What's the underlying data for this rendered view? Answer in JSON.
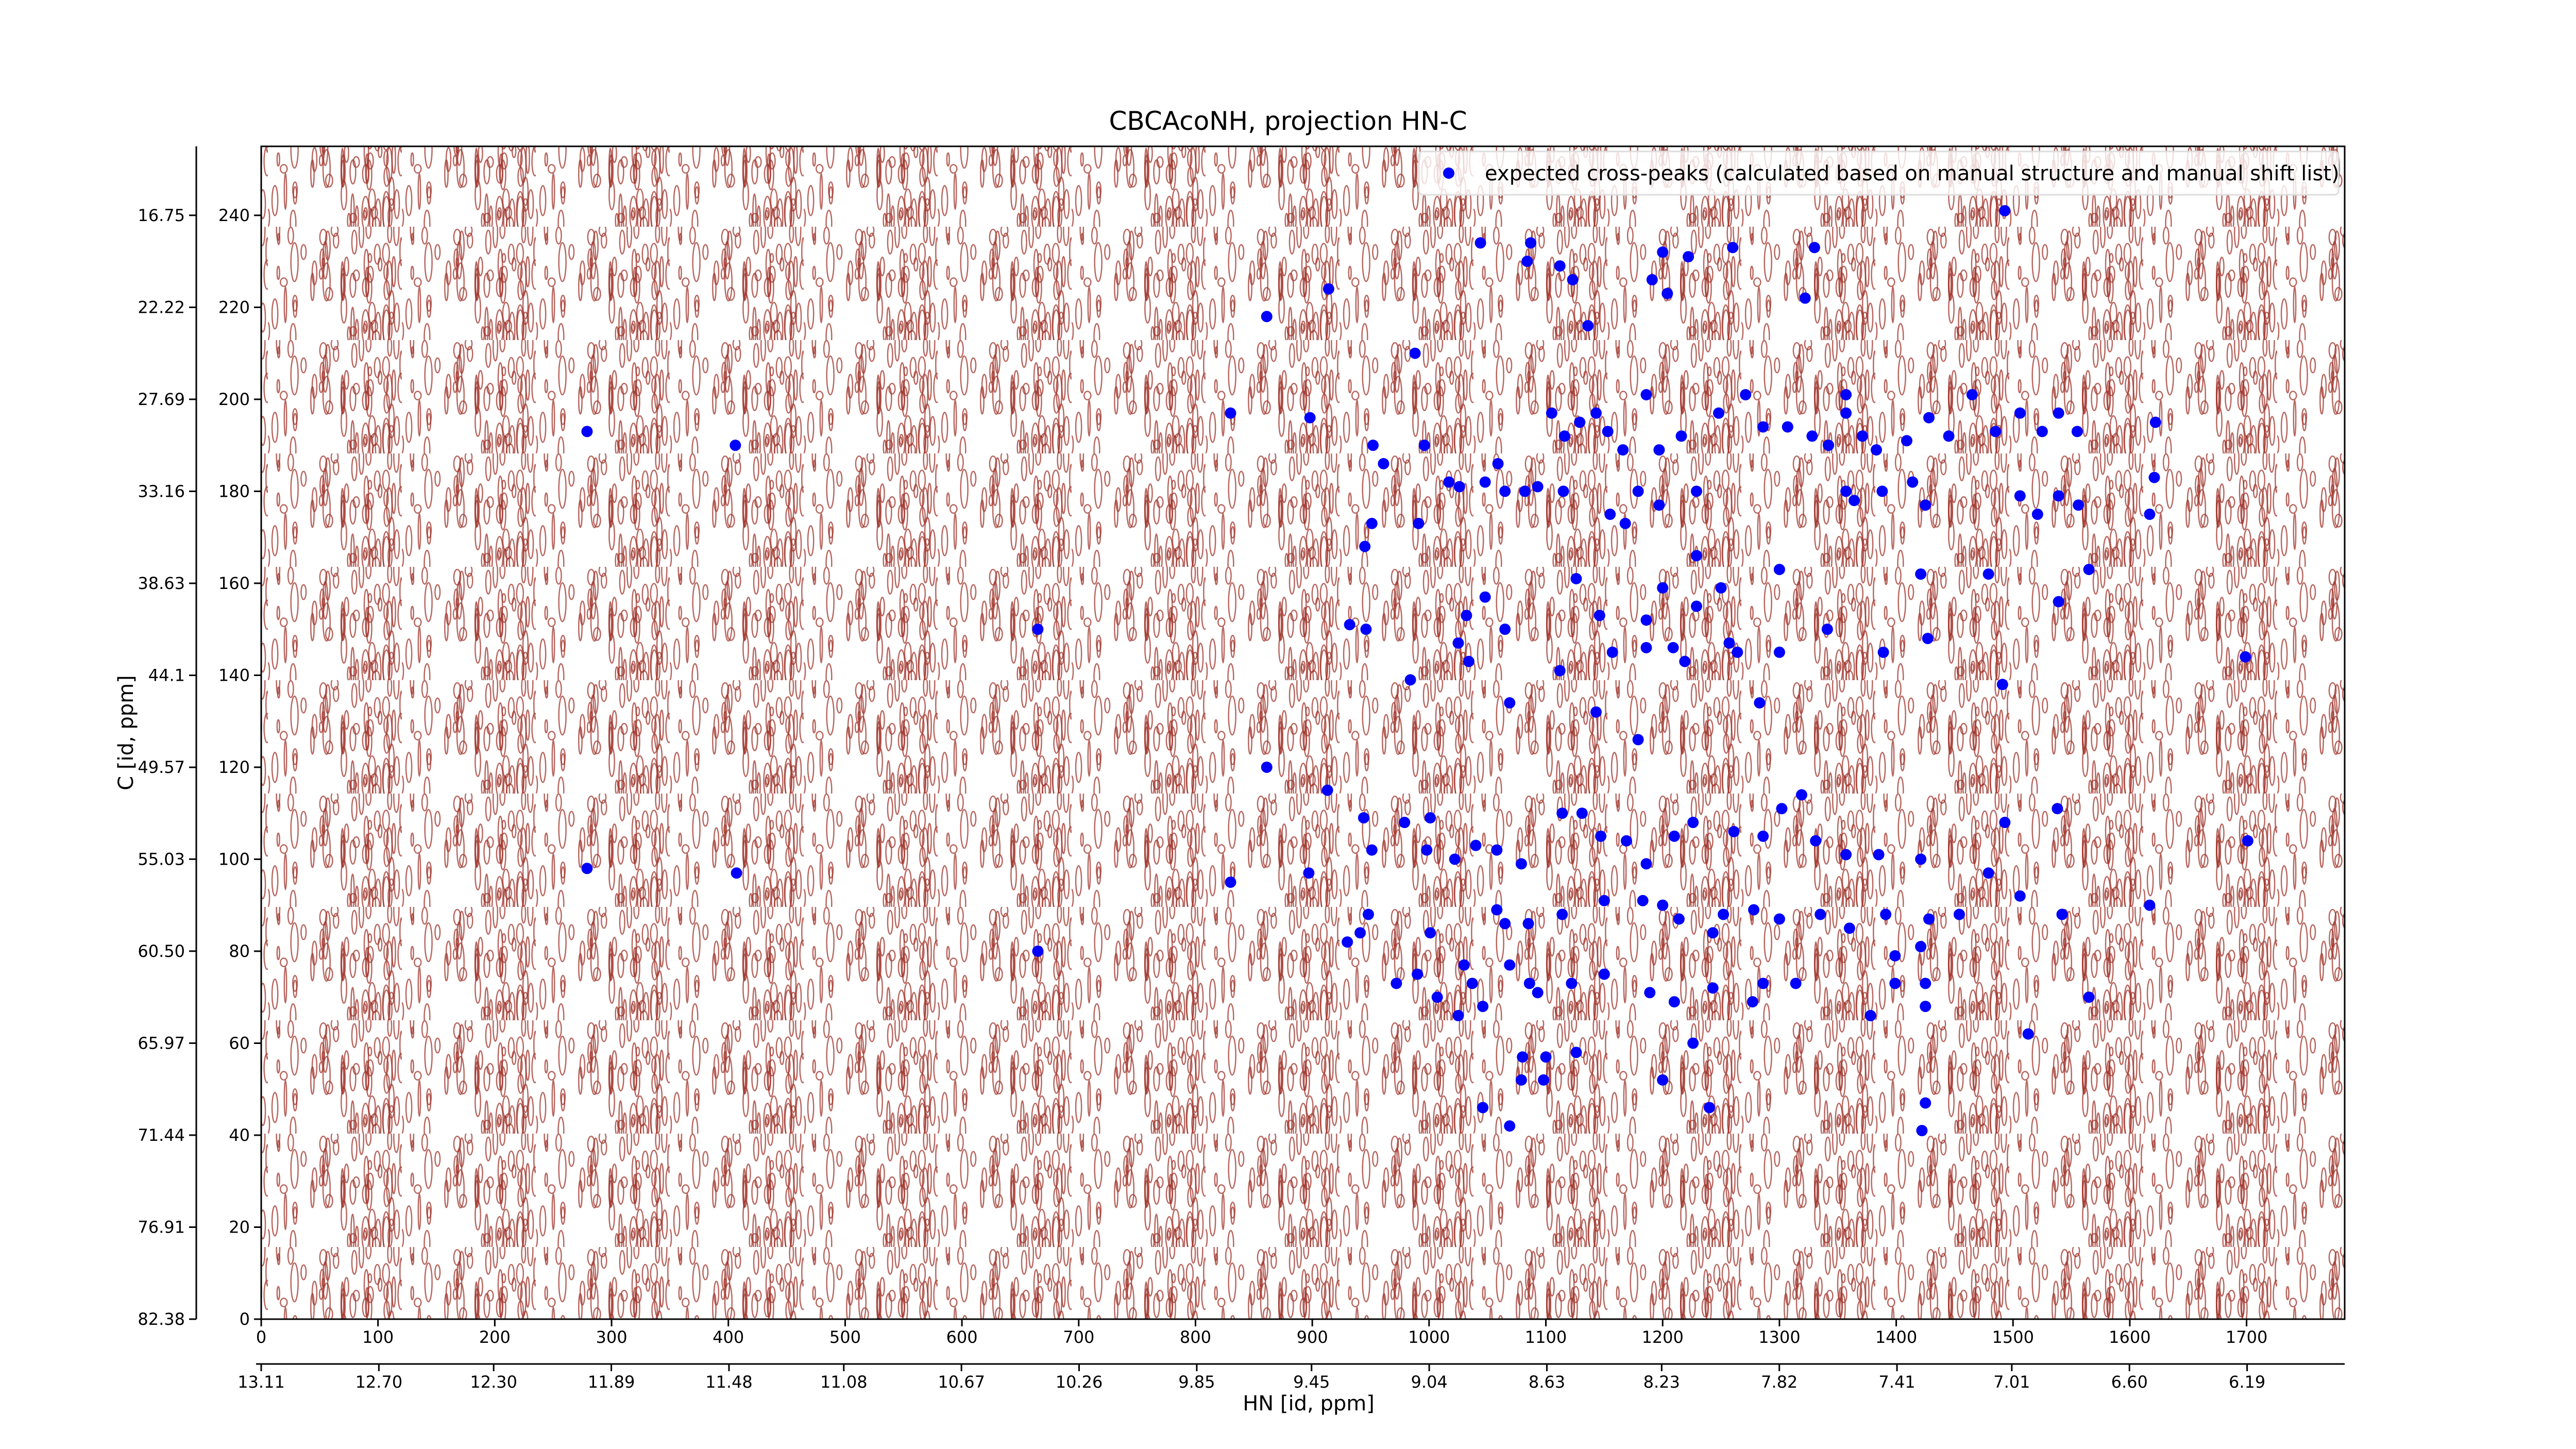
{
  "chart_data": {
    "type": "scatter",
    "title": "CBCAcoNH, projection HN-C",
    "x_label": "HN [id, ppm]",
    "y_label": "C [id, ppm]",
    "xlim": [
      0,
      1784
    ],
    "xticks": [
      0,
      100,
      200,
      300,
      400,
      500,
      600,
      700,
      800,
      900,
      1000,
      1100,
      1200,
      1300,
      1400,
      1500,
      1600,
      1700
    ],
    "ylim": [
      0,
      255
    ],
    "yticks": [
      0,
      20,
      40,
      60,
      80,
      100,
      120,
      140,
      160,
      180,
      200,
      220,
      240
    ],
    "x2lim": [
      13.11,
      5.85
    ],
    "x2ticks": [
      13.11,
      {
        "value": 12.7,
        "label": "12.70"
      },
      {
        "value": 12.3,
        "label": "12.30"
      },
      11.89,
      11.48,
      11.08,
      10.67,
      10.26,
      9.85,
      9.45,
      9.04,
      8.63,
      8.23,
      7.82,
      7.41,
      7.01,
      {
        "value": 6.6,
        "label": "6.60"
      },
      6.19
    ],
    "y2lim": [
      82.38,
      12.65
    ],
    "y2ticks": [
      82.38,
      76.91,
      71.44,
      65.97,
      {
        "value": 60.5,
        "label": "60.50"
      },
      55.03,
      49.57,
      44.1,
      38.63,
      33.16,
      27.69,
      22.22,
      16.75
    ],
    "legend": "upper right",
    "series": [
      {
        "name": "expected cross-peaks (calculated based on manual structure and manual shift list)",
        "color": "#0000ff",
        "x": [
          279,
          406,
          665,
          279,
          407,
          665,
          1493,
          1044,
          1087,
          1084,
          1200,
          1222,
          1260,
          1330,
          1112,
          1191,
          1204,
          914,
          861,
          1123,
          1322,
          1136,
          988,
          830,
          898,
          952,
          961,
          996,
          1017,
          1026,
          1048,
          1059,
          1065,
          1082,
          1093,
          1105,
          1116,
          1129,
          1143,
          1153,
          1166,
          1186,
          1197,
          1216,
          1248,
          1271,
          1286,
          1307,
          1328,
          1342,
          1357,
          1357,
          1371,
          1383,
          1409,
          1428,
          1445,
          1465,
          1485,
          1506,
          1525,
          1539,
          1555,
          1622,
          1621,
          1357,
          1364,
          1388,
          1414,
          1425,
          1506,
          1539,
          1556,
          1521,
          1617,
          1115,
          1179,
          1229,
          1197,
          1155,
          1168,
          1229,
          951,
          991,
          945,
          1126,
          1200,
          1229,
          1250,
          1300,
          1479,
          1421,
          1565,
          1539,
          1032,
          932,
          946,
          1048,
          1065,
          1025,
          1034,
          984,
          1112,
          1146,
          1157,
          1186,
          1186,
          1209,
          1219,
          1257,
          1264,
          1300,
          1341,
          1389,
          1427,
          1699,
          1069,
          1143,
          1283,
          1491,
          1179,
          861,
          913,
          1001,
          1538,
          1493,
          1701,
          830,
          897,
          944,
          951,
          979,
          998,
          1022,
          1040,
          1058,
          1079,
          1114,
          1131,
          1147,
          1169,
          1186,
          1226,
          1210,
          1261,
          1286,
          1302,
          1319,
          1331,
          1357,
          1385,
          1421,
          1479,
          1506,
          1617,
          1542,
          1454,
          1428,
          1391,
          1335,
          1360,
          1300,
          1278,
          1252,
          1243,
          1214,
          1200,
          1150,
          1183,
          1114,
          1085,
          1058,
          1065,
          1001,
          948,
          930,
          941,
          972,
          990,
          1007,
          1030,
          1037,
          1046,
          1025,
          1069,
          1086,
          1093,
          1122,
          1150,
          1189,
          1210,
          1243,
          1277,
          1286,
          1314,
          1399,
          1421,
          1399,
          1378,
          1425,
          1425,
          1565,
          1513,
          1226,
          1080,
          1100,
          1079,
          1098,
          1126,
          1200,
          1046,
          1069,
          1240,
          1425,
          1422
        ],
        "values": [
          193,
          190,
          150,
          98,
          97,
          80,
          241,
          234,
          234,
          230,
          232,
          231,
          233,
          233,
          229,
          226,
          223,
          224,
          218,
          226,
          222,
          216,
          210,
          197,
          196,
          190,
          186,
          190,
          182,
          181,
          182,
          186,
          180,
          180,
          181,
          197,
          192,
          195,
          197,
          193,
          189,
          201,
          189,
          192,
          197,
          201,
          194,
          194,
          192,
          190,
          201,
          197,
          192,
          189,
          191,
          196,
          192,
          201,
          193,
          197,
          193,
          197,
          193,
          195,
          183,
          180,
          178,
          180,
          182,
          177,
          179,
          179,
          177,
          175,
          175,
          180,
          180,
          180,
          177,
          175,
          173,
          166,
          173,
          173,
          168,
          161,
          159,
          155,
          159,
          163,
          162,
          162,
          163,
          156,
          153,
          151,
          150,
          157,
          150,
          147,
          143,
          139,
          141,
          153,
          145,
          152,
          146,
          146,
          143,
          147,
          145,
          145,
          150,
          145,
          148,
          144,
          134,
          132,
          134,
          138,
          126,
          120,
          115,
          109,
          111,
          108,
          104,
          95,
          97,
          109,
          102,
          108,
          102,
          100,
          103,
          102,
          99,
          110,
          110,
          105,
          104,
          99,
          108,
          105,
          106,
          105,
          111,
          114,
          104,
          101,
          101,
          100,
          97,
          92,
          90,
          88,
          88,
          87,
          88,
          88,
          85,
          87,
          89,
          88,
          84,
          87,
          90,
          91,
          91,
          88,
          86,
          89,
          86,
          84,
          88,
          82,
          84,
          73,
          75,
          70,
          77,
          73,
          68,
          66,
          77,
          73,
          71,
          73,
          75,
          71,
          69,
          72,
          69,
          73,
          73,
          79,
          81,
          73,
          66,
          68,
          73,
          70,
          62,
          60,
          57,
          57,
          52,
          52,
          58,
          52,
          46,
          42,
          46,
          47,
          41
        ]
      }
    ]
  }
}
